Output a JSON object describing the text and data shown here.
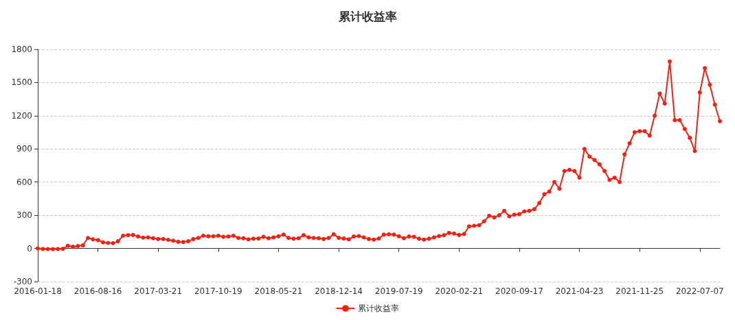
{
  "chart_data": {
    "type": "line",
    "title": "累计收益率",
    "categories": [
      "2016-01-18",
      null,
      null,
      null,
      null,
      null,
      null,
      null,
      null,
      null,
      null,
      null,
      "2016-08-16",
      null,
      null,
      null,
      null,
      null,
      null,
      null,
      null,
      null,
      null,
      null,
      "2017-03-21",
      null,
      null,
      null,
      null,
      null,
      null,
      null,
      null,
      null,
      null,
      null,
      "2017-10-19",
      null,
      null,
      null,
      null,
      null,
      null,
      null,
      null,
      null,
      null,
      null,
      "2018-05-21",
      null,
      null,
      null,
      null,
      null,
      null,
      null,
      null,
      null,
      null,
      null,
      "2018-12-14",
      null,
      null,
      null,
      null,
      null,
      null,
      null,
      null,
      null,
      null,
      null,
      "2019-07-19",
      null,
      null,
      null,
      null,
      null,
      null,
      null,
      null,
      null,
      null,
      null,
      "2020-02-21",
      null,
      null,
      null,
      null,
      null,
      null,
      null,
      null,
      null,
      null,
      null,
      "2020-09-17",
      null,
      null,
      null,
      null,
      null,
      null,
      null,
      null,
      null,
      null,
      null,
      "2021-04-23",
      null,
      null,
      null,
      null,
      null,
      null,
      null,
      null,
      null,
      null,
      null,
      "2021-11-25",
      null,
      null,
      null,
      null,
      null,
      null,
      null,
      null,
      null,
      null,
      null,
      "2022-07-07",
      null,
      null,
      null,
      null
    ],
    "series": [
      {
        "name": "累计收益率",
        "color": "#fa1e0f",
        "values": [
          0,
          -5,
          -6,
          -6,
          -5,
          -3,
          25,
          15,
          22,
          28,
          95,
          82,
          75,
          55,
          50,
          48,
          65,
          115,
          120,
          122,
          108,
          98,
          100,
          92,
          85,
          85,
          78,
          70,
          60,
          58,
          65,
          85,
          95,
          115,
          110,
          110,
          115,
          105,
          108,
          115,
          95,
          92,
          82,
          88,
          90,
          105,
          92,
          100,
          110,
          125,
          95,
          88,
          92,
          120,
          100,
          95,
          92,
          85,
          95,
          128,
          96,
          90,
          82,
          108,
          112,
          100,
          85,
          80,
          90,
          125,
          128,
          125,
          110,
          92,
          108,
          105,
          88,
          80,
          88,
          100,
          112,
          120,
          140,
          135,
          122,
          130,
          200,
          205,
          210,
          245,
          295,
          280,
          300,
          340,
          290,
          305,
          310,
          335,
          340,
          355,
          410,
          490,
          515,
          600,
          540,
          700,
          710,
          700,
          640,
          900,
          830,
          800,
          760,
          700,
          620,
          640,
          600,
          850,
          950,
          1050,
          1060,
          1060,
          1020,
          1200,
          1400,
          1310,
          1690,
          1160,
          1160,
          1080,
          1000,
          880,
          1410,
          1630,
          1480,
          1300,
          1150
        ]
      }
    ],
    "ylim": [
      -300,
      1800
    ],
    "yticks": [
      -300,
      0,
      300,
      600,
      900,
      1200,
      1500,
      1800
    ],
    "grid": "y",
    "legend": "bottom",
    "marker": "circle",
    "line_style": "solid"
  }
}
